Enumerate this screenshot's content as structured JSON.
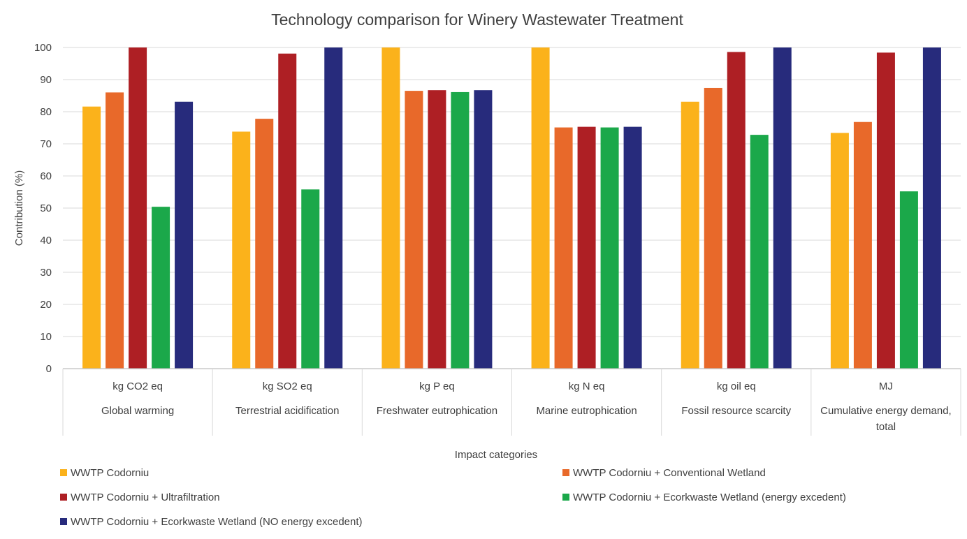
{
  "chart_data": {
    "type": "bar",
    "title": "Technology comparison for Winery Wastewater Treatment",
    "xlabel": "Impact categories",
    "ylabel": "Contribution (%)",
    "ylim": [
      0,
      100
    ],
    "yticks": [
      0,
      10,
      20,
      30,
      40,
      50,
      60,
      70,
      80,
      90,
      100
    ],
    "grid": true,
    "legend_position": "bottom",
    "categories": [
      {
        "unit": "kg CO2 eq",
        "name": [
          "Global warming"
        ]
      },
      {
        "unit": "kg SO2 eq",
        "name": [
          "Terrestrial acidification"
        ]
      },
      {
        "unit": "kg P eq",
        "name": [
          "Freshwater eutrophication"
        ]
      },
      {
        "unit": "kg N eq",
        "name": [
          "Marine eutrophication"
        ]
      },
      {
        "unit": "kg oil eq",
        "name": [
          "Fossil resource scarcity"
        ]
      },
      {
        "unit": "MJ",
        "name": [
          "Cumulative energy demand,",
          "total"
        ]
      }
    ],
    "series": [
      {
        "name": "WWTP Codorniu",
        "color": "#FBB21B",
        "values": [
          81.6,
          73.8,
          100,
          100,
          83.1,
          73.4
        ]
      },
      {
        "name": "WWTP Codorniu + Conventional Wetland",
        "color": "#E8692A",
        "values": [
          86.0,
          77.8,
          86.5,
          75.1,
          87.4,
          76.8
        ]
      },
      {
        "name": "WWTP Codorniu + Ultrafiltration",
        "color": "#AE1F24",
        "values": [
          100,
          98.1,
          86.7,
          75.3,
          98.6,
          98.4
        ]
      },
      {
        "name": "WWTP Codorniu + Ecorkwaste Wetland (energy excedent)",
        "color": "#1BA84A",
        "values": [
          50.4,
          55.8,
          86.1,
          75.1,
          72.8,
          55.2
        ]
      },
      {
        "name": "WWTP Codorniu + Ecorkwaste Wetland (NO energy excedent)",
        "color": "#272B7C",
        "values": [
          83.1,
          100,
          86.7,
          75.3,
          100,
          100
        ]
      }
    ]
  }
}
